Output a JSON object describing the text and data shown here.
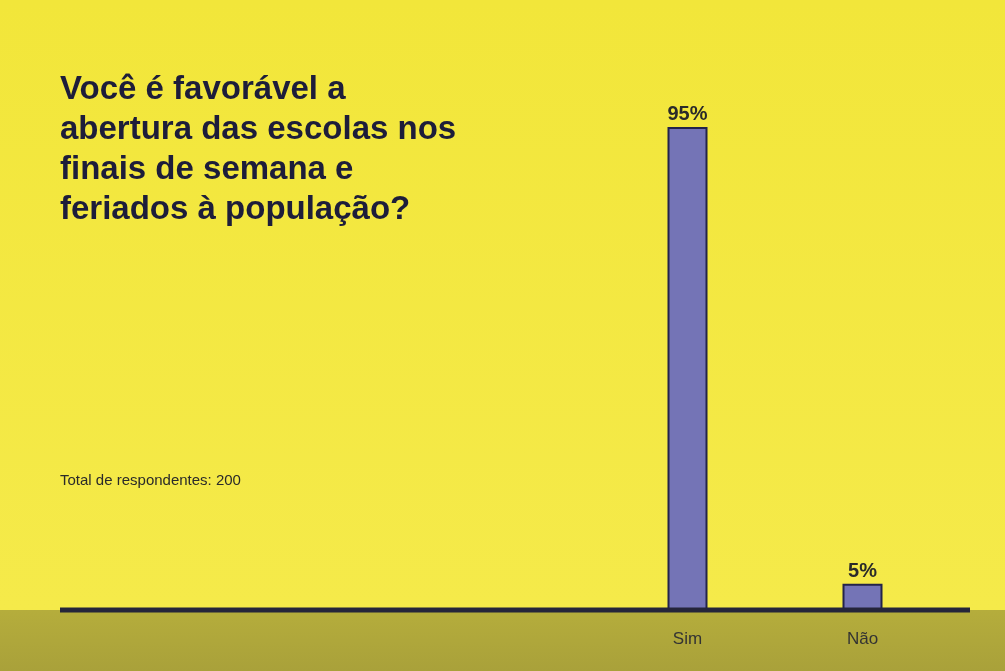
{
  "chart_data": {
    "type": "bar",
    "title": "Você é favorável a abertura das escolas nos finais de semana e feriados à população?",
    "categories": [
      "Sim",
      "Não"
    ],
    "values": [
      95,
      5
    ],
    "value_labels": [
      "95%",
      "5%"
    ],
    "color": "#7474b6",
    "annotations": [
      "Total de respondentes: 200"
    ]
  }
}
